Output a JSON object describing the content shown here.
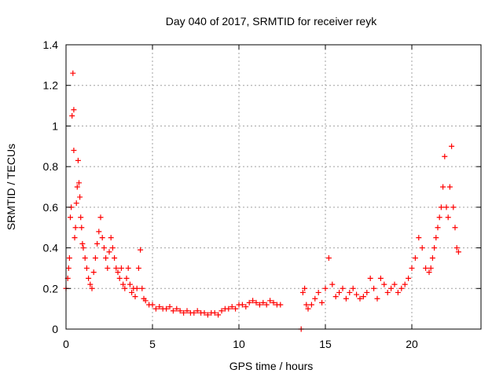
{
  "chart_data": {
    "type": "scatter",
    "title": "Day 040 of 2017, SRMTID for receiver reyk",
    "xlabel": "GPS time / hours",
    "ylabel": "SRMTID / TECUs",
    "xlim": [
      0,
      24
    ],
    "ylim": [
      0,
      1.4
    ],
    "xticks": [
      0,
      5,
      10,
      15,
      20
    ],
    "xtick_labels": [
      "0",
      "5",
      "10",
      "15",
      "20"
    ],
    "yticks": [
      0,
      0.2,
      0.4,
      0.6,
      0.8,
      1,
      1.2,
      1.4
    ],
    "ytick_labels": [
      "0",
      "0.2",
      "0.4",
      "0.6",
      "0.8",
      "1",
      "1.2",
      "1.4"
    ],
    "grid": true,
    "marker": "+",
    "color": "#ff0000",
    "series": [
      {
        "name": "SRMTID",
        "x": [
          0.0,
          0.1,
          0.15,
          0.2,
          0.25,
          0.3,
          0.35,
          0.4,
          0.45,
          0.45,
          0.5,
          0.55,
          0.6,
          0.65,
          0.7,
          0.75,
          0.8,
          0.85,
          0.9,
          0.95,
          1.0,
          1.1,
          1.2,
          1.3,
          1.4,
          1.5,
          1.6,
          1.7,
          1.8,
          1.9,
          2.0,
          2.1,
          2.2,
          2.3,
          2.4,
          2.5,
          2.6,
          2.7,
          2.8,
          2.9,
          3.0,
          3.1,
          3.2,
          3.3,
          3.4,
          3.5,
          3.6,
          3.7,
          3.8,
          3.9,
          4.0,
          4.1,
          4.2,
          4.3,
          4.4,
          4.5,
          4.6,
          4.8,
          5.0,
          5.2,
          5.4,
          5.6,
          5.8,
          6.0,
          6.2,
          6.4,
          6.6,
          6.8,
          7.0,
          7.2,
          7.4,
          7.6,
          7.8,
          8.0,
          8.2,
          8.4,
          8.6,
          8.8,
          9.0,
          9.2,
          9.4,
          9.6,
          9.8,
          10.0,
          10.2,
          10.4,
          10.6,
          10.8,
          11.0,
          11.2,
          11.4,
          11.6,
          11.8,
          12.0,
          12.2,
          12.4,
          13.6,
          13.7,
          13.8,
          13.9,
          14.0,
          14.2,
          14.4,
          14.6,
          14.8,
          15.0,
          15.2,
          15.4,
          15.6,
          15.8,
          16.0,
          16.2,
          16.4,
          16.6,
          16.8,
          17.0,
          17.2,
          17.4,
          17.6,
          17.8,
          18.0,
          18.2,
          18.4,
          18.6,
          18.8,
          19.0,
          19.2,
          19.4,
          19.6,
          19.8,
          20.0,
          20.2,
          20.4,
          20.6,
          20.8,
          21.0,
          21.1,
          21.2,
          21.3,
          21.4,
          21.5,
          21.6,
          21.7,
          21.8,
          21.9,
          22.0,
          22.1,
          22.2,
          22.3,
          22.4,
          22.5,
          22.6,
          22.7
        ],
        "y": [
          0.2,
          0.25,
          0.3,
          0.35,
          0.55,
          0.6,
          1.05,
          1.26,
          0.88,
          1.08,
          0.45,
          0.5,
          0.62,
          0.7,
          0.83,
          0.72,
          0.65,
          0.55,
          0.5,
          0.42,
          0.4,
          0.35,
          0.3,
          0.25,
          0.22,
          0.2,
          0.28,
          0.35,
          0.42,
          0.48,
          0.55,
          0.45,
          0.4,
          0.35,
          0.3,
          0.38,
          0.45,
          0.4,
          0.35,
          0.3,
          0.28,
          0.25,
          0.3,
          0.22,
          0.2,
          0.25,
          0.3,
          0.22,
          0.18,
          0.2,
          0.16,
          0.2,
          0.3,
          0.39,
          0.2,
          0.15,
          0.14,
          0.12,
          0.12,
          0.1,
          0.11,
          0.1,
          0.1,
          0.11,
          0.09,
          0.1,
          0.09,
          0.08,
          0.09,
          0.08,
          0.08,
          0.09,
          0.08,
          0.08,
          0.07,
          0.08,
          0.08,
          0.07,
          0.09,
          0.1,
          0.1,
          0.11,
          0.1,
          0.12,
          0.12,
          0.11,
          0.13,
          0.14,
          0.13,
          0.12,
          0.13,
          0.12,
          0.14,
          0.13,
          0.12,
          0.12,
          0.0,
          0.18,
          0.2,
          0.12,
          0.1,
          0.12,
          0.15,
          0.18,
          0.13,
          0.2,
          0.35,
          0.22,
          0.16,
          0.18,
          0.2,
          0.15,
          0.18,
          0.2,
          0.17,
          0.15,
          0.16,
          0.18,
          0.25,
          0.2,
          0.15,
          0.25,
          0.22,
          0.18,
          0.2,
          0.22,
          0.18,
          0.2,
          0.22,
          0.25,
          0.3,
          0.35,
          0.45,
          0.4,
          0.3,
          0.28,
          0.3,
          0.35,
          0.4,
          0.45,
          0.5,
          0.55,
          0.6,
          0.7,
          0.85,
          0.6,
          0.55,
          0.7,
          0.9,
          0.6,
          0.5,
          0.4,
          0.38
        ]
      }
    ]
  }
}
